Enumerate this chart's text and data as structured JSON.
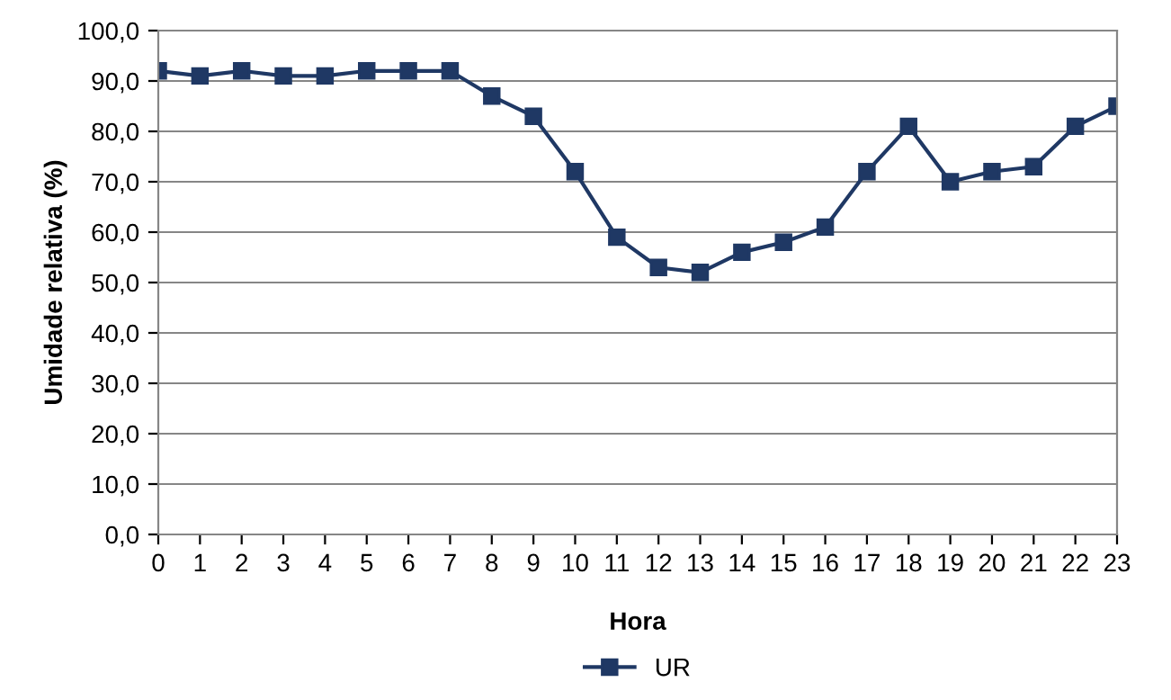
{
  "chart_data": {
    "type": "line",
    "xlabel": "Hora",
    "ylabel": "Umidade relativa (%)",
    "categories": [
      "0",
      "1",
      "2",
      "3",
      "4",
      "5",
      "6",
      "7",
      "8",
      "9",
      "10",
      "11",
      "12",
      "13",
      "14",
      "15",
      "16",
      "17",
      "18",
      "19",
      "20",
      "21",
      "22",
      "23"
    ],
    "series": [
      {
        "name": "UR",
        "color": "#1f3864",
        "values": [
          92,
          91,
          92,
          91,
          91,
          92,
          92,
          92,
          87,
          83,
          72,
          59,
          53,
          52,
          56,
          58,
          61,
          72,
          81,
          70,
          72,
          73,
          81,
          85
        ]
      }
    ],
    "ylim": [
      0,
      100
    ],
    "yticks": [
      {
        "value": 0,
        "label": "0,0"
      },
      {
        "value": 10,
        "label": "10,0"
      },
      {
        "value": 20,
        "label": "20,0"
      },
      {
        "value": 30,
        "label": "30,0"
      },
      {
        "value": 40,
        "label": "40,0"
      },
      {
        "value": 50,
        "label": "50,0"
      },
      {
        "value": 60,
        "label": "60,0"
      },
      {
        "value": 70,
        "label": "70,0"
      },
      {
        "value": 80,
        "label": "80,0"
      },
      {
        "value": 90,
        "label": "90,0"
      },
      {
        "value": 100,
        "label": "100,0"
      }
    ],
    "grid": "y",
    "legend": "bottom",
    "marker": "square",
    "line_style": "solid"
  }
}
